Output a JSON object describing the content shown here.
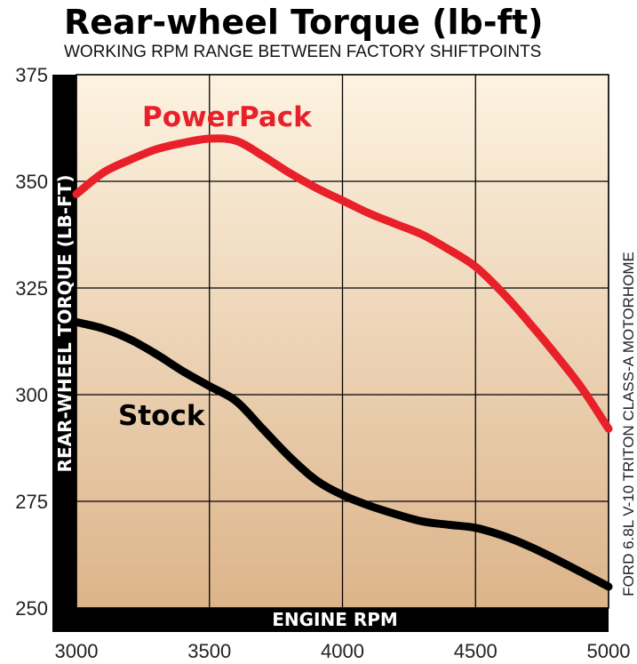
{
  "chart_data": {
    "type": "line",
    "title": "Rear-wheel Torque (lb-ft)",
    "subtitle": "WORKING RPM RANGE BETWEEN FACTORY SHIFTPOINTS",
    "xlabel": "ENGINE RPM",
    "ylabel": "REAR-WHEEL TORQUE (LB-FT)",
    "side_note": "FORD 6.8L V-10 TRITON CLASS-A MOTORHOME",
    "xlim": [
      3000,
      5000
    ],
    "ylim": [
      250,
      375
    ],
    "x_ticks": [
      "3000",
      "3500",
      "4000",
      "4500",
      "5000"
    ],
    "y_ticks": [
      "250",
      "275",
      "300",
      "325",
      "350",
      "375"
    ],
    "grid": true,
    "series": [
      {
        "name": "PowerPack",
        "color": "#e8202a",
        "points": [
          [
            3000,
            347
          ],
          [
            3100,
            352
          ],
          [
            3200,
            355
          ],
          [
            3300,
            357.5
          ],
          [
            3400,
            359
          ],
          [
            3500,
            360
          ],
          [
            3600,
            359.5
          ],
          [
            3700,
            356
          ],
          [
            3800,
            352
          ],
          [
            3900,
            348.5
          ],
          [
            4000,
            345.5
          ],
          [
            4100,
            342.5
          ],
          [
            4200,
            340
          ],
          [
            4300,
            337.5
          ],
          [
            4400,
            334
          ],
          [
            4500,
            330
          ],
          [
            4600,
            324
          ],
          [
            4700,
            317
          ],
          [
            4800,
            309.5
          ],
          [
            4900,
            301.5
          ],
          [
            5000,
            292
          ]
        ]
      },
      {
        "name": "Stock",
        "color": "#000000",
        "points": [
          [
            3000,
            317
          ],
          [
            3100,
            315.5
          ],
          [
            3200,
            313
          ],
          [
            3300,
            309.5
          ],
          [
            3400,
            305.5
          ],
          [
            3500,
            302
          ],
          [
            3600,
            298.5
          ],
          [
            3700,
            292
          ],
          [
            3800,
            285.5
          ],
          [
            3900,
            280
          ],
          [
            4000,
            276.5
          ],
          [
            4100,
            274
          ],
          [
            4200,
            272
          ],
          [
            4300,
            270.3
          ],
          [
            4400,
            269.5
          ],
          [
            4500,
            268.8
          ],
          [
            4600,
            267
          ],
          [
            4700,
            264.5
          ],
          [
            4800,
            261.5
          ],
          [
            4900,
            258.3
          ],
          [
            5000,
            255
          ]
        ]
      }
    ]
  }
}
